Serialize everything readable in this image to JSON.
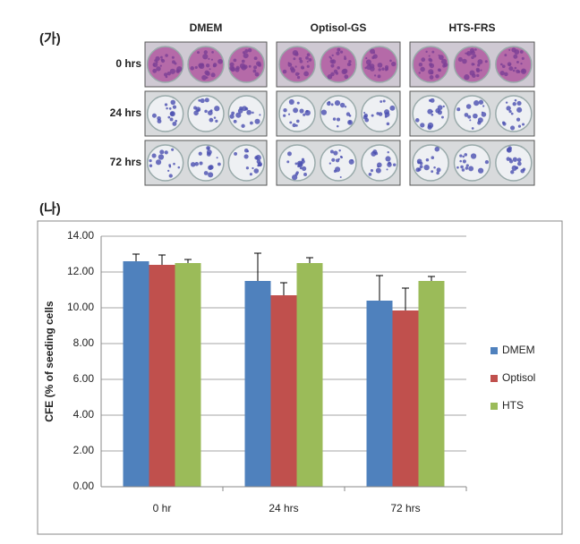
{
  "photo_panel": {
    "label": "(가)",
    "columns": [
      "DMEM",
      "Optisol-GS",
      "HTS-FRS"
    ],
    "rows": [
      "0 hrs",
      "24 hrs",
      "72 hrs"
    ]
  },
  "chart_data": {
    "type": "bar",
    "panel_label": "(나)",
    "y_label": "CFE (% of seeding cells",
    "categories": [
      "0 hr",
      "24 hrs",
      "72 hrs"
    ],
    "series": [
      {
        "name": "DMEM",
        "color": "#4f81bd",
        "values": [
          12.6,
          11.5,
          10.4
        ],
        "error": [
          0.4,
          1.55,
          1.4
        ]
      },
      {
        "name": "Optisol",
        "color": "#c0504d",
        "values": [
          12.4,
          10.7,
          9.85
        ],
        "error": [
          0.55,
          0.7,
          1.25
        ]
      },
      {
        "name": "HTS",
        "color": "#9bbb59",
        "values": [
          12.5,
          12.5,
          11.5
        ],
        "error": [
          0.2,
          0.3,
          0.25
        ]
      }
    ],
    "ylim": [
      0,
      14
    ],
    "yticks": [
      {
        "value": 0,
        "label": "0.00"
      },
      {
        "value": 2,
        "label": "2.00"
      },
      {
        "value": 4,
        "label": "4.00"
      },
      {
        "value": 6,
        "label": "6.00"
      },
      {
        "value": 8,
        "label": "8.00"
      },
      {
        "value": 10,
        "label": "10.00"
      },
      {
        "value": 12,
        "label": "12.00"
      },
      {
        "value": 14,
        "label": "14.00"
      }
    ],
    "grid": true,
    "legend": "right"
  }
}
